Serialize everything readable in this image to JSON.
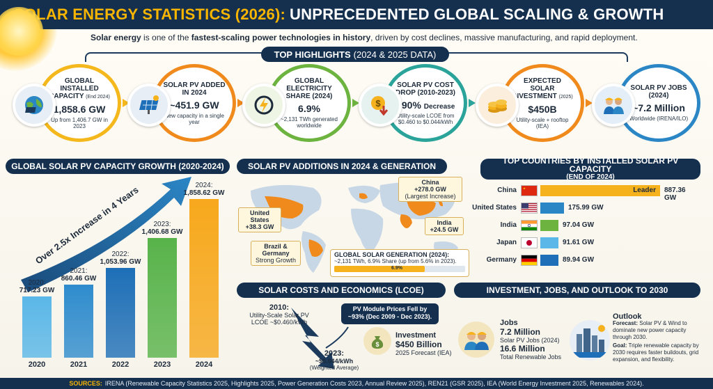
{
  "header": {
    "title_part1": "SOLAR ENERGY STATISTICS (2026):",
    "title_part2": "UNPRECEDENTED GLOBAL SCALING & GROWTH",
    "subtitle_b1": "Solar energy",
    "subtitle_t1": " is one of the ",
    "subtitle_b2": "fastest-scaling power technologies in history",
    "subtitle_t2": ", driven by cost declines, massive manufacturing, and rapid deployment."
  },
  "highlights": {
    "label": "TOP HIGHLIGHTS",
    "label_sub": "(2024 & 2025 DATA)",
    "cards": [
      {
        "title": "GLOBAL INSTALLED CAPACITY",
        "title_small": "(End 2024)",
        "value": "1,858.6 GW",
        "value_small": "",
        "note": "Up from 1,406.7 GW in 2023",
        "color": "#f4b81c",
        "icon": "solar-globe-icon"
      },
      {
        "title": "SOLAR PV ADDED IN 2024",
        "title_small": "",
        "value": "~451.9 GW",
        "value_small": "",
        "note": "New capacity in a single year",
        "color": "#f08a1c",
        "icon": "solar-panel-icon"
      },
      {
        "title": "GLOBAL ELECTRICITY SHARE (2024)",
        "title_small": "",
        "value": "6.9%",
        "value_small": "",
        "note": "~2,131 TWh generated worldwide",
        "color": "#6cb33f",
        "icon": "lightning-icon"
      },
      {
        "title": "SOLAR PV COST DROP (2010-2023)",
        "title_small": "",
        "value": "~90%",
        "value_small": "Decrease",
        "note": "Utility-scale LCOE from $0.460 to $0.044/kWh",
        "color": "#2aa39a",
        "icon": "dollar-down-icon"
      },
      {
        "title": "EXPECTED SOLAR INVESTMENT",
        "title_small": "(2025)",
        "value": "$450B",
        "value_small": "",
        "note": "Utility-scale + rooftop (IEA)",
        "color": "#f08a1c",
        "icon": "coins-icon"
      },
      {
        "title": "SOLAR PV JOBS (2024)",
        "title_small": "",
        "value": "~7.2 Million",
        "value_small": "",
        "note": "Worldwide (IRENA/ILO)",
        "color": "#2b86c5",
        "icon": "workers-icon"
      }
    ]
  },
  "growth": {
    "header": "GLOBAL SOLAR PV CAPACITY GROWTH (2020-2024)",
    "arrow_text": "Over 2.5x Increase in 4 Years"
  },
  "chart_data": {
    "type": "bar",
    "categories": [
      "2020",
      "2021",
      "2022",
      "2023",
      "2024"
    ],
    "values": [
      717.23,
      860.46,
      1053.96,
      1406.68,
      1858.62
    ],
    "value_labels": [
      {
        "year": "2020:",
        "val": "717.23 GW"
      },
      {
        "year": "2021:",
        "val": "860.46 GW"
      },
      {
        "year": "2022:",
        "val": "1,053.96 GW"
      },
      {
        "year": "2023:",
        "val": "1,406.68 GW"
      },
      {
        "year": "2024:",
        "val": "1,858.62 GW"
      }
    ],
    "colors": [
      "#5ab7e8",
      "#2f8ccd",
      "#1e6fb7",
      "#58b34a",
      "#f7a81c"
    ],
    "ylim": [
      0,
      2000
    ]
  },
  "additions": {
    "header": "SOLAR PV ADDITIONS IN 2024 & GENERATION",
    "china": "China",
    "china_val": "+278.0 GW",
    "china_note": "(Largest Increase)",
    "us": "United States",
    "us_val": "+38.3 GW",
    "india": "India",
    "india_val": "+24.5 GW",
    "brazil": "Brazil & Germany",
    "brazil_note": "Strong Growth",
    "gen_title": "GLOBAL SOLAR GENERATION (2024):",
    "gen_text": "~2,131 TWh, 6.9% Share (up from 5.6% in 2023).",
    "gen_bar_label": "6.9%",
    "gen_share": 0.069
  },
  "countries": {
    "header": "TOP COUNTRIES BY INSTALLED SOLAR PV CAPACITY",
    "header_sub": "(END OF 2024)",
    "leader_label": "Leader",
    "items": [
      {
        "name": "China",
        "value": 887.36,
        "label": "887.36 GW",
        "color": "#f6b21d",
        "flag": "china-flag-icon"
      },
      {
        "name": "United States",
        "value": 175.99,
        "label": "175.99 GW",
        "color": "#2b86c5",
        "flag": "us-flag-icon"
      },
      {
        "name": "India",
        "value": 97.04,
        "label": "97.04 GW",
        "color": "#6cb33f",
        "flag": "india-flag-icon"
      },
      {
        "name": "Japan",
        "value": 91.61,
        "label": "91.61 GW",
        "color": "#5ab7e8",
        "flag": "japan-flag-icon"
      },
      {
        "name": "Germany",
        "value": 89.94,
        "label": "89.94 GW",
        "color": "#1e6fb7",
        "flag": "germany-flag-icon"
      }
    ]
  },
  "costs": {
    "header": "SOLAR COSTS AND ECONOMICS (LCOE)",
    "y2010": "2010:",
    "y2010_note1": "Utility-Scale Solar PV",
    "y2010_note2": "LCOE ~$0.460/kWh",
    "y2023": "2023:",
    "y2023_val": "~$0.044/kWh",
    "y2023_note": "(Weighted Average)",
    "module_t1": "PV Module Prices Fell by",
    "module_t2": "~93% (Dec 2009 - Dec 2023)."
  },
  "outlook": {
    "header": "INVESTMENT, JOBS, AND OUTLOOK TO 2030",
    "inv_title": "Investment",
    "inv_val": "$450 Billion",
    "inv_note": "2025 Forecast (IEA)",
    "jobs_title": "Jobs",
    "jobs_val1": "7.2 Million",
    "jobs_note1": "Solar PV Jobs (2024)",
    "jobs_val2": "16.6 Million",
    "jobs_note2": "Total Renewable Jobs",
    "out_title": "Outlook",
    "forecast_label": "Forecast:",
    "forecast_text": "Solar PV & Wind to dominate new power capacity through 2030.",
    "goal_label": "Goal:",
    "goal_text": "Triple renewable capacity by 2030 requires faster buildouts, grid expansion, and flexibility."
  },
  "footer": {
    "label": "SOURCES:",
    "text": "IRENA (Renewable Capacity Statistics 2025, Highlights 2025, Power Generation Costs 2023, Annual Review 2025), REN21 (GSR 2025), IEA (World Energy Investment 2025, Renewables 2024)."
  }
}
